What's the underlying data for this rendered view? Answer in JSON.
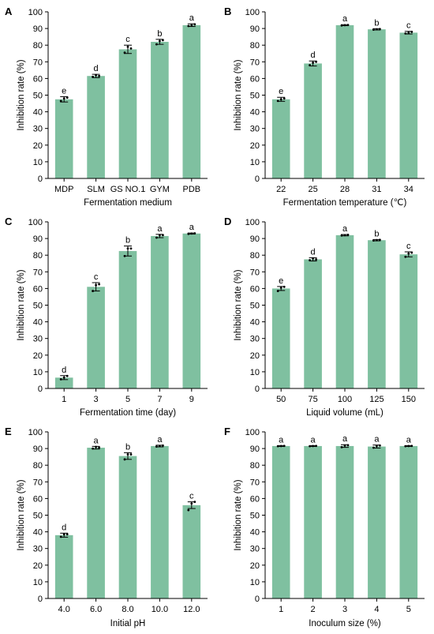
{
  "colors": {
    "bar": "#7fc0a0",
    "axis": "#000000",
    "point": "#000000"
  },
  "chart_data": [
    {
      "panel": "A",
      "type": "bar",
      "xlabel": "Fermentation medium",
      "ylabel": "Inhibition rate (%)",
      "ylim": [
        0,
        100
      ],
      "yticks": [
        0,
        10,
        20,
        30,
        40,
        50,
        60,
        70,
        80,
        90,
        100
      ],
      "categories": [
        "MDP",
        "SLM",
        "GS NO.1",
        "GYM",
        "PDB"
      ],
      "values": [
        47.5,
        61.5,
        77.5,
        82,
        92
      ],
      "errors": [
        1.6,
        1.0,
        2.5,
        1.5,
        0.8
      ],
      "significance": [
        "e",
        "d",
        "c",
        "b",
        "a"
      ],
      "points": [
        [
          46.5,
          48,
          48.5
        ],
        [
          61,
          62,
          61.5
        ],
        [
          75.5,
          79,
          78
        ],
        [
          80.5,
          82.5,
          83
        ],
        [
          91.5,
          92,
          92.5
        ]
      ]
    },
    {
      "panel": "B",
      "type": "bar",
      "xlabel": "Fermentation temperature (℃)",
      "ylabel": "Inhibition rate (%)",
      "ylim": [
        0,
        100
      ],
      "yticks": [
        0,
        10,
        20,
        30,
        40,
        50,
        60,
        70,
        80,
        90,
        100
      ],
      "categories": [
        "22",
        "25",
        "28",
        "31",
        "34"
      ],
      "values": [
        47.5,
        69,
        92,
        89.5,
        87.5
      ],
      "errors": [
        1.2,
        1.5,
        0.3,
        0.4,
        0.8
      ],
      "significance": [
        "e",
        "d",
        "a",
        "b",
        "c"
      ],
      "points": [
        [
          46.5,
          47.5,
          48
        ],
        [
          68,
          69.5,
          70
        ],
        [
          91.8,
          92,
          92.1
        ],
        [
          89.3,
          89.5,
          89.7
        ],
        [
          87,
          87.5,
          88
        ]
      ]
    },
    {
      "panel": "C",
      "type": "bar",
      "xlabel": "Fermentation time (day)",
      "ylabel": "Inhibition rate (%)",
      "ylim": [
        0,
        100
      ],
      "yticks": [
        0,
        10,
        20,
        30,
        40,
        50,
        60,
        70,
        80,
        90,
        100
      ],
      "categories": [
        "1",
        "3",
        "5",
        "7",
        "9"
      ],
      "values": [
        6.5,
        61,
        82.5,
        91.5,
        93
      ],
      "errors": [
        1.2,
        2.5,
        3.0,
        1.0,
        0.3
      ],
      "significance": [
        "d",
        "c",
        "b",
        "a",
        "a"
      ],
      "points": [
        [
          5.5,
          6.5,
          7.5
        ],
        [
          58.5,
          62,
          62.5
        ],
        [
          79.5,
          84,
          84
        ],
        [
          90.5,
          92,
          92
        ],
        [
          92.8,
          93,
          93.1
        ]
      ]
    },
    {
      "panel": "D",
      "type": "bar",
      "xlabel": "Liquid volume (mL)",
      "ylabel": "Inhibition rate (%)",
      "ylim": [
        0,
        100
      ],
      "yticks": [
        0,
        10,
        20,
        30,
        40,
        50,
        60,
        70,
        80,
        90,
        100
      ],
      "categories": [
        "50",
        "75",
        "100",
        "125",
        "150"
      ],
      "values": [
        60,
        77.5,
        92,
        89,
        80.5
      ],
      "errors": [
        1.2,
        1.0,
        0.4,
        0.4,
        1.5
      ],
      "significance": [
        "e",
        "d",
        "a",
        "b",
        "c"
      ],
      "points": [
        [
          58.5,
          60.5,
          61
        ],
        [
          77,
          78,
          77.5
        ],
        [
          91.8,
          92,
          92.2
        ],
        [
          88.8,
          89,
          89.2
        ],
        [
          79,
          81,
          81.5
        ]
      ]
    },
    {
      "panel": "E",
      "type": "bar",
      "xlabel": "Initial pH",
      "ylabel": "Inhibition rate (%)",
      "ylim": [
        0,
        100
      ],
      "yticks": [
        0,
        10,
        20,
        30,
        40,
        50,
        60,
        70,
        80,
        90,
        100
      ],
      "categories": [
        "4.0",
        "6.0",
        "8.0",
        "10.0",
        "12.0"
      ],
      "values": [
        38,
        90.5,
        85.5,
        91.5,
        56
      ],
      "errors": [
        1.2,
        0.8,
        2.0,
        0.5,
        2.0
      ],
      "significance": [
        "d",
        "a",
        "b",
        "a",
        "c"
      ],
      "points": [
        [
          37,
          38.5,
          38.5
        ],
        [
          90,
          91,
          90.5
        ],
        [
          83.5,
          86.5,
          86.5
        ],
        [
          91.2,
          91.5,
          91.8
        ],
        [
          53,
          57,
          58
        ]
      ]
    },
    {
      "panel": "F",
      "type": "bar",
      "xlabel": "Inoculum size (%)",
      "ylabel": "Inhibition rate (%)",
      "ylim": [
        0,
        100
      ],
      "yticks": [
        0,
        10,
        20,
        30,
        40,
        50,
        60,
        70,
        80,
        90,
        100
      ],
      "categories": [
        "1",
        "2",
        "3",
        "4",
        "5"
      ],
      "values": [
        91.5,
        91.5,
        91.5,
        91.2,
        91.5
      ],
      "errors": [
        0.2,
        0.2,
        0.8,
        0.9,
        0.2
      ],
      "significance": [
        "a",
        "a",
        "a",
        "a",
        "a"
      ],
      "points": [
        [
          91.4,
          91.5,
          91.6
        ],
        [
          91.4,
          91.5,
          91.6
        ],
        [
          90.8,
          91.8,
          92
        ],
        [
          90.5,
          91.5,
          91.8
        ],
        [
          91.4,
          91.5,
          91.6
        ]
      ]
    }
  ]
}
